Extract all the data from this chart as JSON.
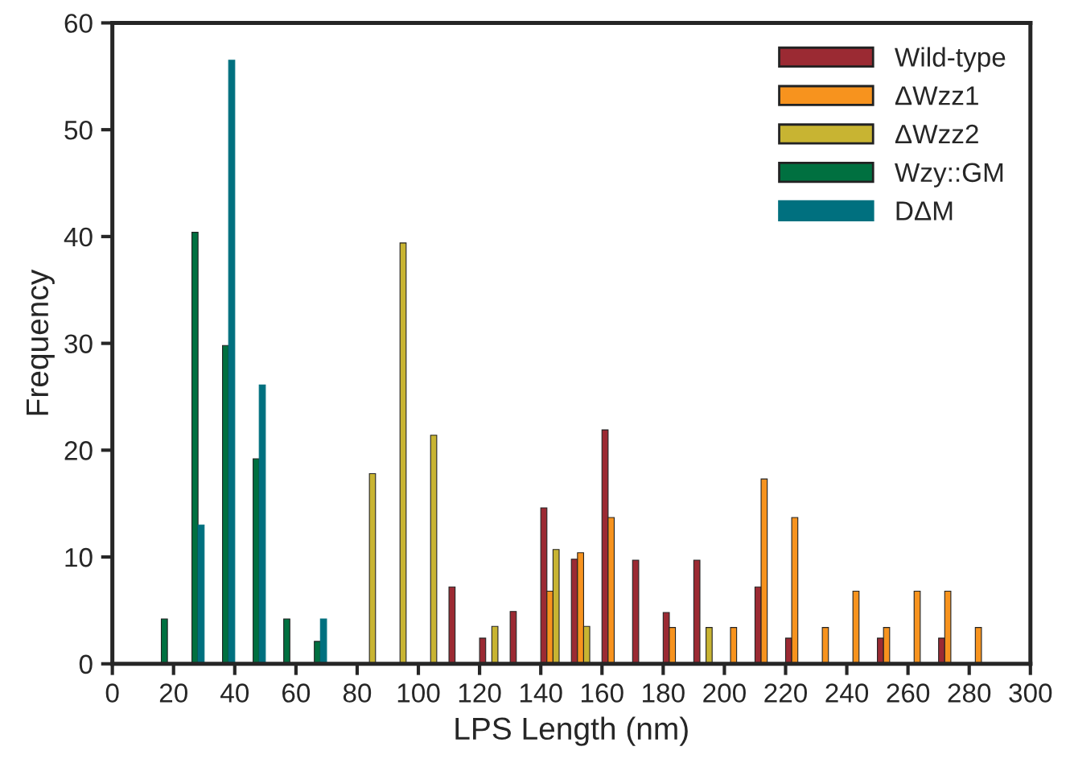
{
  "chart_data": {
    "type": "bar",
    "xlabel": "LPS Length (nm)",
    "ylabel": "Frequency",
    "x": [
      15,
      25,
      35,
      45,
      55,
      65,
      75,
      85,
      95,
      105,
      115,
      125,
      135,
      145,
      155,
      165,
      175,
      185,
      195,
      205,
      215,
      225,
      235,
      245,
      255,
      265,
      275,
      285
    ],
    "series": [
      {
        "name": "Wild-type",
        "color": "#9b2a33",
        "values": [
          null,
          null,
          null,
          null,
          null,
          null,
          null,
          null,
          null,
          null,
          7.2,
          2.4,
          4.9,
          14.6,
          9.8,
          21.9,
          9.7,
          4.8,
          9.7,
          null,
          7.2,
          2.4,
          null,
          null,
          2.4,
          null,
          2.4,
          null
        ]
      },
      {
        "name": "ΔWzz1",
        "color": "#f7931e",
        "values": [
          null,
          null,
          null,
          null,
          null,
          null,
          null,
          null,
          null,
          null,
          null,
          null,
          null,
          6.8,
          10.4,
          13.7,
          null,
          3.4,
          null,
          3.4,
          17.3,
          13.7,
          3.4,
          6.8,
          3.4,
          6.8,
          6.8,
          3.4
        ]
      },
      {
        "name": "ΔWzz2",
        "color": "#c8b432",
        "values": [
          null,
          null,
          null,
          null,
          null,
          null,
          null,
          17.8,
          39.4,
          21.4,
          null,
          3.5,
          null,
          10.7,
          3.5,
          null,
          null,
          null,
          3.4,
          null,
          null,
          null,
          null,
          null,
          null,
          null,
          null,
          null
        ]
      },
      {
        "name": "Wzy::GM",
        "color": "#007040",
        "values": [
          4.2,
          40.4,
          29.8,
          19.2,
          4.2,
          2.1,
          null,
          null,
          null,
          null,
          null,
          null,
          null,
          null,
          null,
          null,
          null,
          null,
          null,
          null,
          null,
          null,
          null,
          null,
          null,
          null,
          null,
          null
        ]
      },
      {
        "name": "DΔM",
        "color": "#00707f",
        "values": [
          null,
          13,
          56.5,
          26.1,
          null,
          4.2,
          null,
          null,
          null,
          null,
          null,
          null,
          null,
          null,
          null,
          null,
          null,
          null,
          null,
          null,
          null,
          null,
          null,
          null,
          null,
          null,
          null,
          null
        ]
      }
    ],
    "xlim": [
      0,
      300
    ],
    "xticks": [
      0,
      20,
      40,
      60,
      80,
      100,
      120,
      140,
      160,
      180,
      200,
      220,
      240,
      260,
      280,
      300
    ],
    "ylim": [
      0,
      60
    ],
    "yticks": [
      0,
      10,
      20,
      30,
      40,
      50,
      60
    ],
    "legend": "top right",
    "grid": false
  }
}
